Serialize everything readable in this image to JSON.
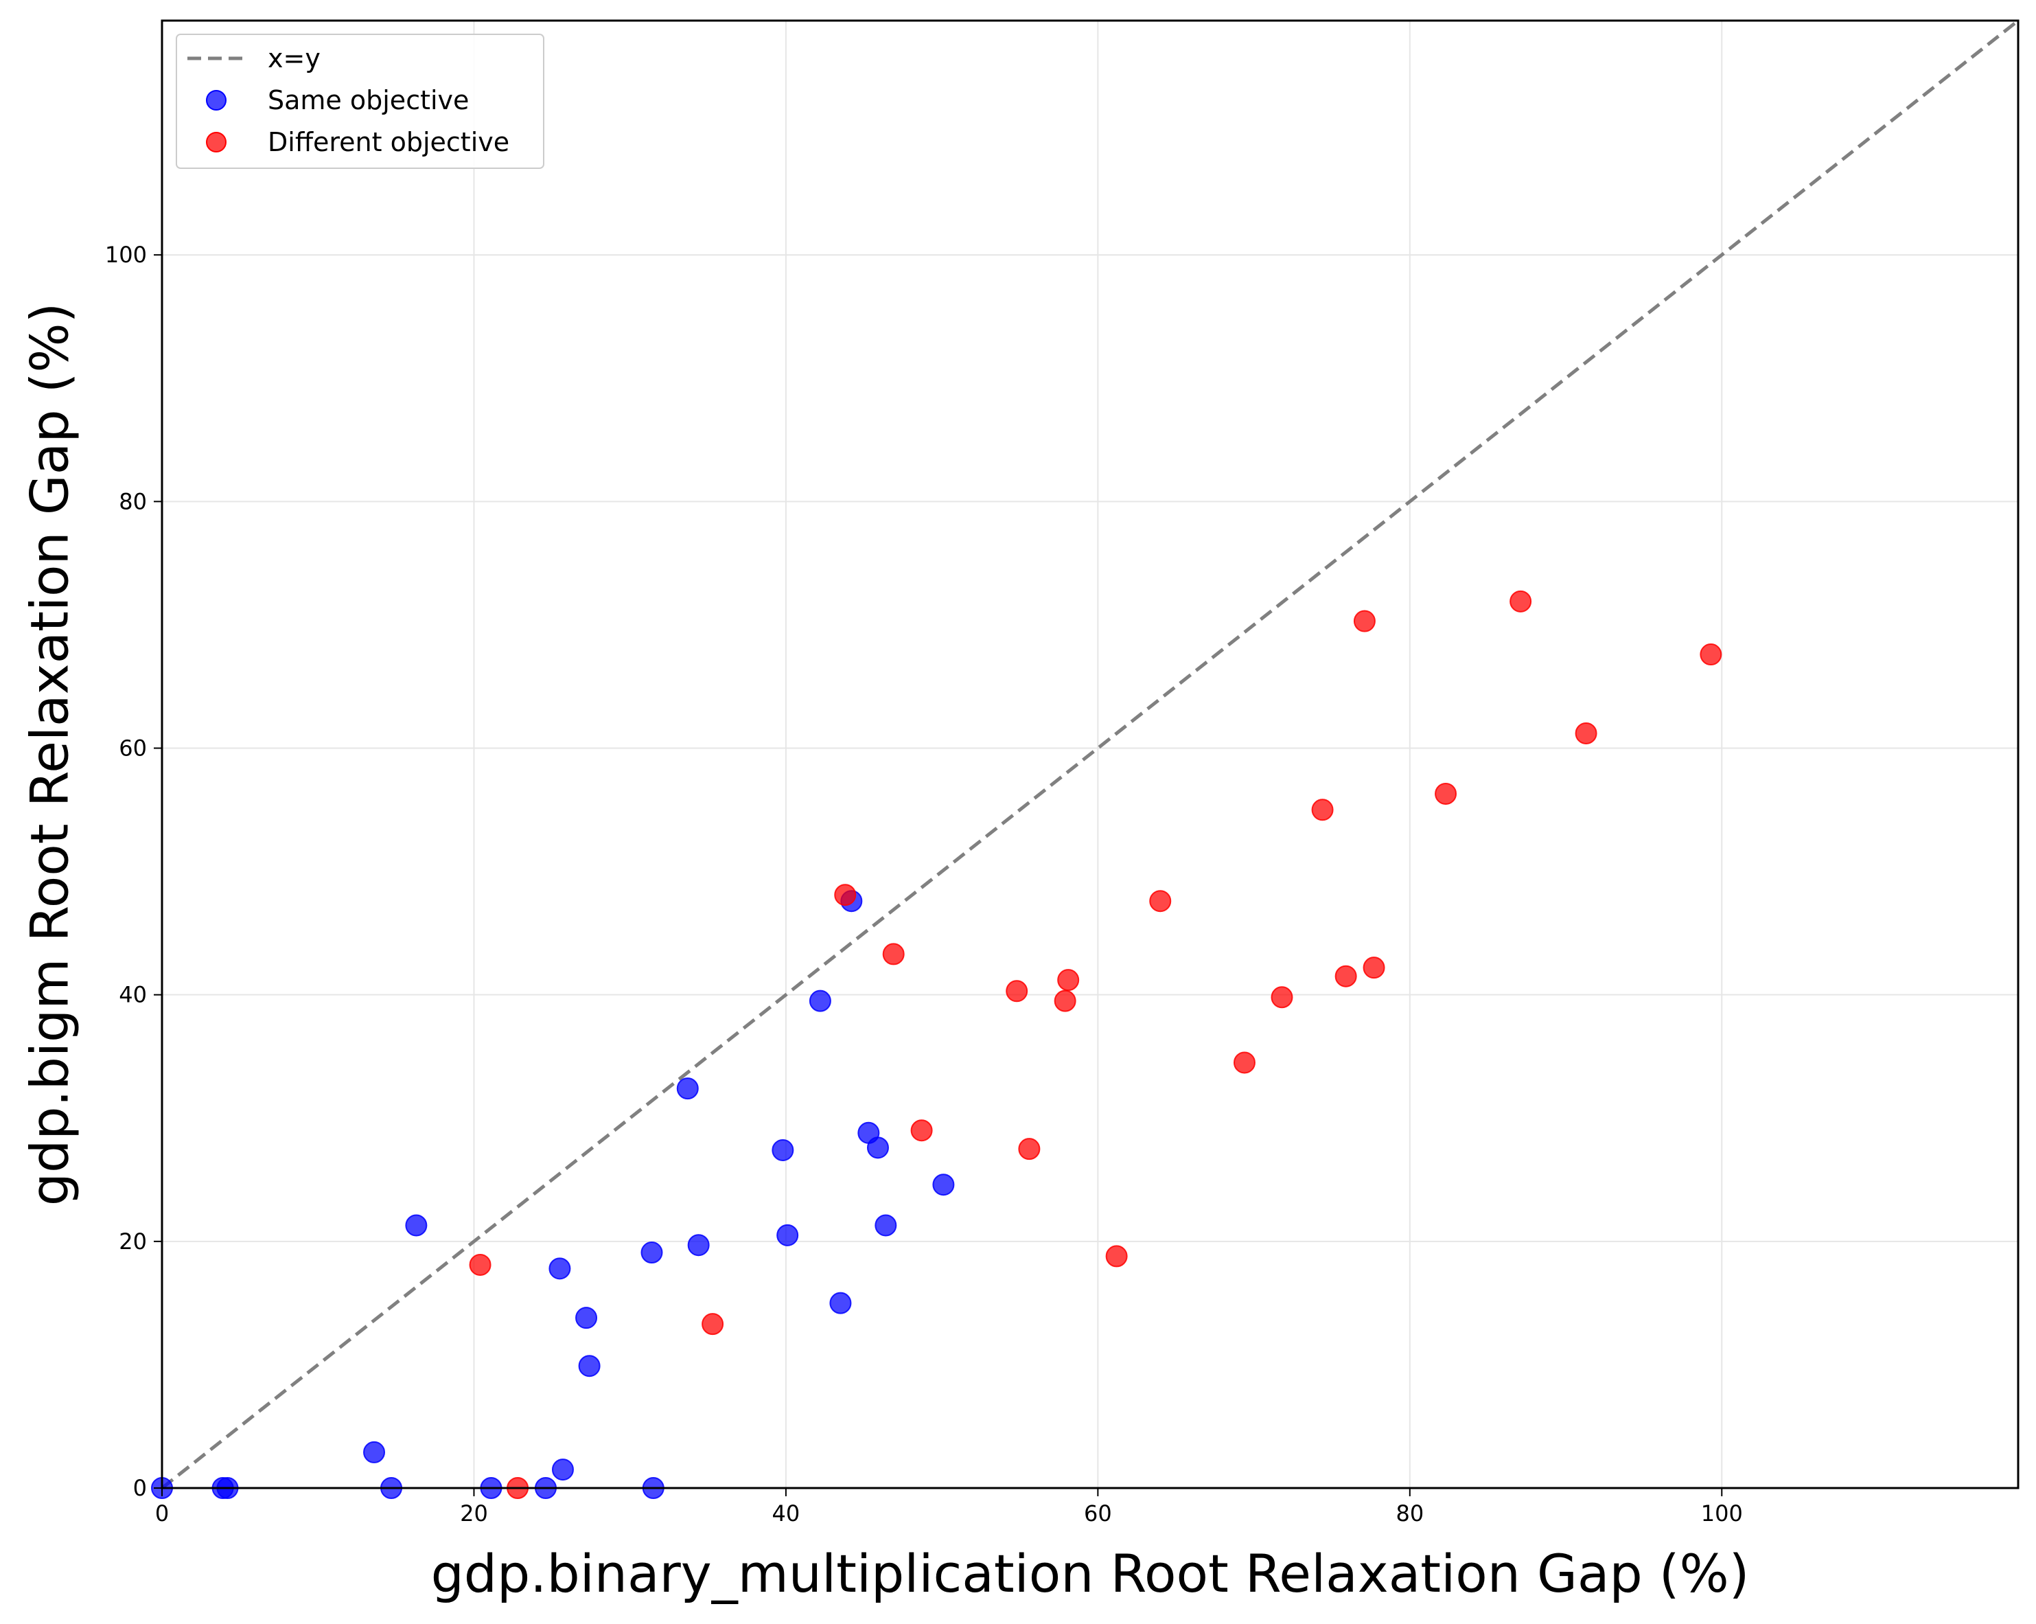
{
  "chart_data": {
    "type": "scatter",
    "title": "",
    "xlabel": "gdp.binary_multiplication Root Relaxation Gap (%)",
    "ylabel": "gdp.bigm Root Relaxation Gap (%)",
    "xlim": [
      0,
      119
    ],
    "ylim": [
      0,
      119
    ],
    "xticks": [
      0,
      20,
      40,
      60,
      80,
      100
    ],
    "yticks": [
      0,
      20,
      40,
      60,
      80,
      100
    ],
    "grid": true,
    "legend_position": "upper-left",
    "reference_line": {
      "name": "x=y",
      "style": "dashed",
      "color": "#808080"
    },
    "series": [
      {
        "name": "Same objective",
        "color": "#0000ff",
        "points": [
          [
            0,
            0
          ],
          [
            3.9,
            0
          ],
          [
            4.2,
            0
          ],
          [
            13.6,
            2.9
          ],
          [
            14.7,
            0
          ],
          [
            16.3,
            21.3
          ],
          [
            21.1,
            0
          ],
          [
            24.6,
            0
          ],
          [
            25.5,
            17.8
          ],
          [
            25.7,
            1.5
          ],
          [
            27.2,
            13.8
          ],
          [
            27.4,
            9.9
          ],
          [
            31.4,
            19.1
          ],
          [
            31.5,
            0
          ],
          [
            33.7,
            32.4
          ],
          [
            34.4,
            19.7
          ],
          [
            39.8,
            27.4
          ],
          [
            40.1,
            20.5
          ],
          [
            42.2,
            39.5
          ],
          [
            43.5,
            15.0
          ],
          [
            44.2,
            47.6
          ],
          [
            45.3,
            28.8
          ],
          [
            45.9,
            27.6
          ],
          [
            46.4,
            21.3
          ],
          [
            50.1,
            24.6
          ]
        ]
      },
      {
        "name": "Different objective",
        "color": "#ff0000",
        "points": [
          [
            20.4,
            18.1
          ],
          [
            22.8,
            0
          ],
          [
            35.3,
            13.3
          ],
          [
            43.8,
            48.1
          ],
          [
            46.9,
            43.3
          ],
          [
            48.7,
            29.0
          ],
          [
            54.8,
            40.3
          ],
          [
            55.6,
            27.5
          ],
          [
            57.9,
            39.5
          ],
          [
            58.1,
            41.2
          ],
          [
            61.2,
            18.8
          ],
          [
            64.0,
            47.6
          ],
          [
            69.4,
            34.5
          ],
          [
            71.8,
            39.8
          ],
          [
            74.4,
            55.0
          ],
          [
            75.9,
            41.5
          ],
          [
            77.1,
            70.3
          ],
          [
            77.7,
            42.2
          ],
          [
            82.3,
            56.3
          ],
          [
            87.1,
            71.9
          ],
          [
            91.3,
            61.2
          ],
          [
            99.3,
            67.6
          ]
        ]
      }
    ]
  }
}
